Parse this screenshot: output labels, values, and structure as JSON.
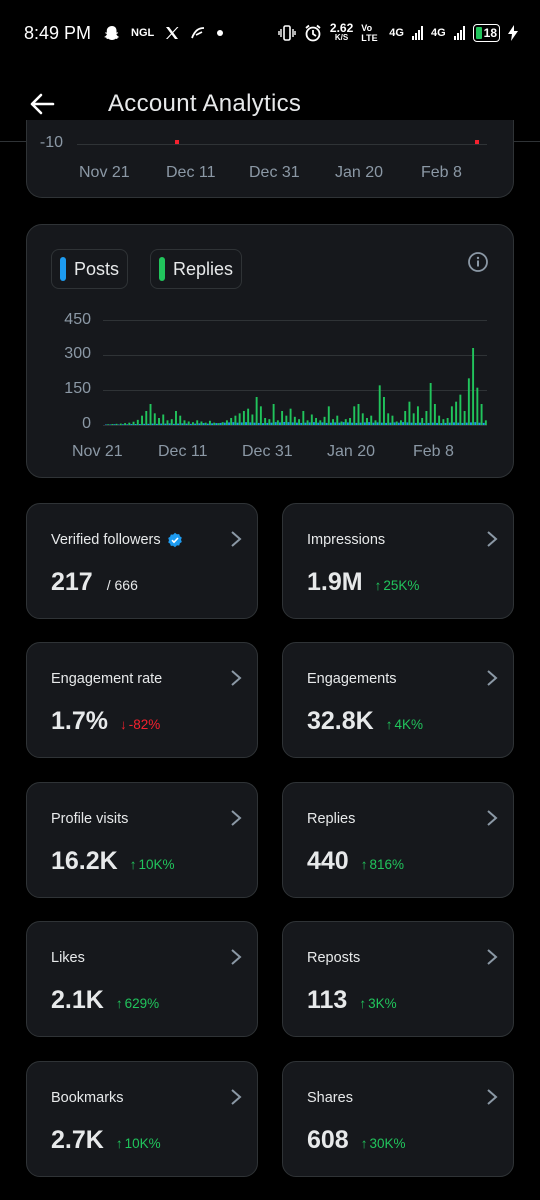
{
  "statusbar": {
    "time": "8:49 PM",
    "speed_value": "2.62",
    "speed_unit": "K/S",
    "volte": "Vo LTE",
    "net1": "4G",
    "net2": "4G",
    "battery": "18",
    "app_icons": [
      "snapchat-icon",
      "ngl-icon",
      "x-icon",
      "spark-icon",
      "dot-icon"
    ],
    "ngl_label": "NGL"
  },
  "header": {
    "title": "Account Analytics"
  },
  "top_chart": {
    "y_tick": "-10",
    "x_ticks": [
      "Nov 21",
      "Dec 11",
      "Dec 31",
      "Jan 20",
      "Feb 8"
    ]
  },
  "activity_chart": {
    "legend": [
      {
        "label": "Posts",
        "color": "#1d9bf0"
      },
      {
        "label": "Replies",
        "color": "#21c45c"
      }
    ],
    "y_ticks": [
      "450",
      "300",
      "150",
      "0"
    ],
    "x_ticks": [
      "Nov 21",
      "Dec 11",
      "Dec 31",
      "Jan 20",
      "Feb 8"
    ]
  },
  "chart_data": {
    "type": "bar",
    "title": "",
    "xlabel": "",
    "ylabel": "",
    "ylim": [
      0,
      450
    ],
    "x_ticks": [
      "Nov 21",
      "Dec 11",
      "Dec 31",
      "Jan 20",
      "Feb 8"
    ],
    "y_ticks": [
      450,
      300,
      150,
      0
    ],
    "series": [
      {
        "name": "Posts",
        "color": "#1d9bf0",
        "values": [
          2,
          2,
          3,
          2,
          3,
          3,
          4,
          4,
          4,
          5,
          5,
          6,
          5,
          6,
          6,
          7,
          5,
          6,
          7,
          6,
          5,
          6,
          7,
          8,
          6,
          7,
          8,
          9,
          10,
          11,
          12,
          10,
          11,
          12,
          11,
          10,
          9,
          8,
          9,
          10,
          12,
          11,
          13,
          12,
          11,
          10,
          9,
          10,
          11,
          12,
          10,
          11,
          9,
          10,
          11,
          10,
          12,
          11,
          10,
          9,
          10,
          11,
          12,
          10,
          11,
          10,
          9,
          10,
          11,
          10,
          12,
          11,
          10,
          9,
          10,
          8,
          9,
          10,
          9,
          8,
          9,
          10,
          11,
          10,
          9,
          10,
          11,
          12,
          10,
          9
        ]
      },
      {
        "name": "Replies",
        "color": "#21c45c",
        "values": [
          3,
          4,
          5,
          6,
          8,
          10,
          14,
          22,
          40,
          60,
          90,
          50,
          30,
          45,
          20,
          25,
          60,
          40,
          20,
          15,
          12,
          20,
          15,
          10,
          18,
          10,
          8,
          12,
          20,
          30,
          40,
          50,
          60,
          70,
          45,
          120,
          80,
          30,
          25,
          90,
          20,
          60,
          40,
          70,
          35,
          25,
          60,
          20,
          45,
          30,
          20,
          35,
          80,
          25,
          40,
          15,
          25,
          30,
          80,
          90,
          50,
          30,
          40,
          20,
          170,
          120,
          50,
          40,
          15,
          20,
          60,
          100,
          50,
          80,
          30,
          60,
          180,
          90,
          40,
          25,
          30,
          80,
          100,
          130,
          60,
          200,
          330,
          160,
          90,
          20
        ]
      }
    ]
  },
  "metrics": [
    {
      "label": "Verified followers",
      "value": "217",
      "sub": "/ 666",
      "delta": "",
      "dir": "none",
      "badge": true
    },
    {
      "label": "Impressions",
      "value": "1.9M",
      "sub": "",
      "delta": "25K%",
      "dir": "up",
      "badge": false
    },
    {
      "label": "Engagement rate",
      "value": "1.7%",
      "sub": "",
      "delta": "-82%",
      "dir": "down",
      "badge": false
    },
    {
      "label": "Engagements",
      "value": "32.8K",
      "sub": "",
      "delta": "4K%",
      "dir": "up",
      "badge": false
    },
    {
      "label": "Profile visits",
      "value": "16.2K",
      "sub": "",
      "delta": "10K%",
      "dir": "up",
      "badge": false
    },
    {
      "label": "Replies",
      "value": "440",
      "sub": "",
      "delta": "816%",
      "dir": "up",
      "badge": false
    },
    {
      "label": "Likes",
      "value": "2.1K",
      "sub": "",
      "delta": "629%",
      "dir": "up",
      "badge": false
    },
    {
      "label": "Reposts",
      "value": "113",
      "sub": "",
      "delta": "3K%",
      "dir": "up",
      "badge": false
    },
    {
      "label": "Bookmarks",
      "value": "2.7K",
      "sub": "",
      "delta": "10K%",
      "dir": "up",
      "badge": false
    },
    {
      "label": "Shares",
      "value": "608",
      "sub": "",
      "delta": "30K%",
      "dir": "up",
      "badge": false
    }
  ],
  "colors": {
    "background": "#000000",
    "card": "#16181c",
    "border": "#2f3336",
    "up": "#21c45c",
    "down": "#f4212e",
    "verified": "#1d9bf0"
  }
}
